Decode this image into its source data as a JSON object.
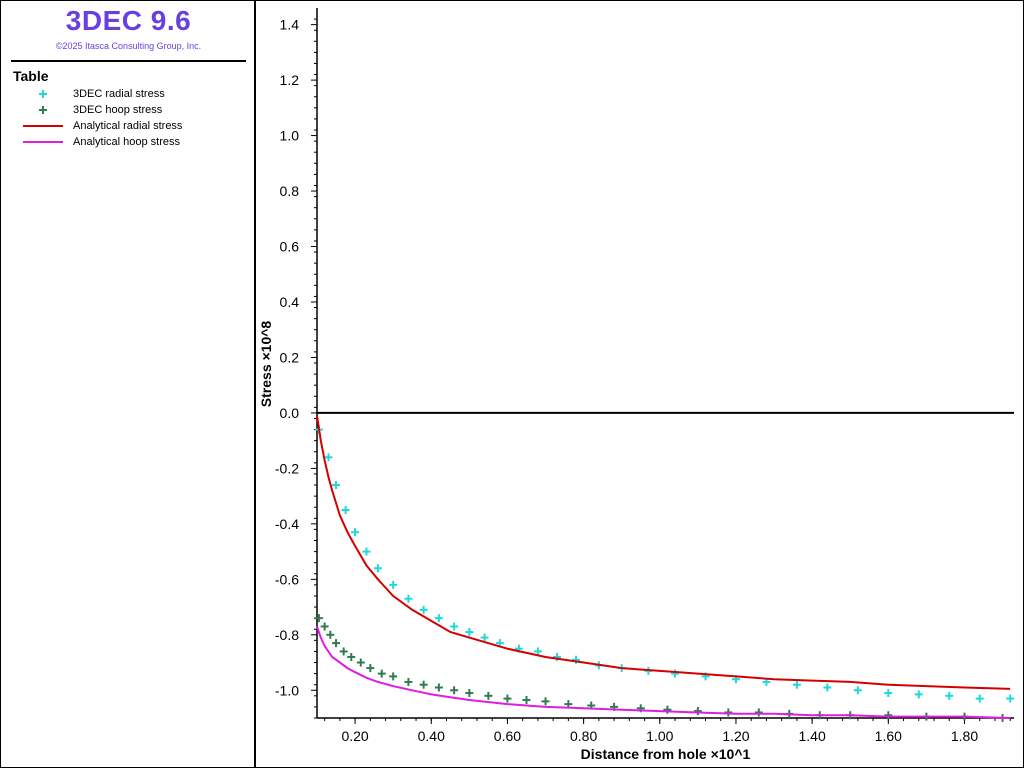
{
  "app": {
    "title": "3DEC 9.6",
    "copyright": "©2025 Itasca Consulting Group, Inc."
  },
  "legend": {
    "heading": "Table",
    "items": [
      {
        "label": "3DEC radial stress",
        "type": "marker",
        "color": "#1fd9d9"
      },
      {
        "label": "3DEC hoop stress",
        "type": "marker",
        "color": "#2e7d4f"
      },
      {
        "label": "Analytical radial stress",
        "type": "line",
        "color": "#d40000"
      },
      {
        "label": "Analytical hoop stress",
        "type": "line",
        "color": "#e01ee0"
      }
    ]
  },
  "chart_data": {
    "type": "scatter",
    "xlabel": "Distance from hole ×10^1",
    "ylabel": "Stress ×10^8",
    "xlim": [
      0.1,
      1.93
    ],
    "ylim": [
      -1.1,
      1.46
    ],
    "x_ticks": [
      "0.20",
      "0.40",
      "0.60",
      "0.80",
      "1.00",
      "1.20",
      "1.40",
      "1.60",
      "1.80"
    ],
    "y_ticks": [
      "1.4",
      "1.2",
      "1.0",
      "0.8",
      "0.6",
      "0.4",
      "0.2",
      "0.0",
      "-0.2",
      "-0.4",
      "-0.6",
      "-0.8",
      "-1.0"
    ],
    "grid": false,
    "legend_position": "left-panel",
    "zero_line": true,
    "series": [
      {
        "name": "3DEC radial stress",
        "kind": "marker",
        "color": "#1fd9d9",
        "x": [
          0.105,
          0.13,
          0.15,
          0.175,
          0.2,
          0.23,
          0.26,
          0.3,
          0.34,
          0.38,
          0.42,
          0.46,
          0.5,
          0.54,
          0.58,
          0.63,
          0.68,
          0.73,
          0.78,
          0.84,
          0.9,
          0.97,
          1.04,
          1.12,
          1.2,
          1.28,
          1.36,
          1.44,
          1.52,
          1.6,
          1.68,
          1.76,
          1.84,
          1.92
        ],
        "y": [
          -0.06,
          -0.16,
          -0.26,
          -0.35,
          -0.43,
          -0.5,
          -0.56,
          -0.62,
          -0.67,
          -0.71,
          -0.74,
          -0.77,
          -0.79,
          -0.81,
          -0.83,
          -0.85,
          -0.86,
          -0.88,
          -0.89,
          -0.91,
          -0.92,
          -0.93,
          -0.94,
          -0.95,
          -0.96,
          -0.97,
          -0.98,
          -0.99,
          -1.0,
          -1.01,
          -1.015,
          -1.02,
          -1.03,
          -1.03
        ]
      },
      {
        "name": "3DEC hoop stress",
        "kind": "marker",
        "color": "#2e7d4f",
        "x": [
          0.105,
          0.12,
          0.135,
          0.15,
          0.17,
          0.19,
          0.215,
          0.24,
          0.27,
          0.3,
          0.34,
          0.38,
          0.42,
          0.46,
          0.5,
          0.55,
          0.6,
          0.65,
          0.7,
          0.76,
          0.82,
          0.88,
          0.95,
          1.02,
          1.1,
          1.18,
          1.26,
          1.34,
          1.42,
          1.5,
          1.6,
          1.7,
          1.8,
          1.9
        ],
        "y": [
          -0.74,
          -0.77,
          -0.8,
          -0.83,
          -0.86,
          -0.88,
          -0.9,
          -0.92,
          -0.94,
          -0.95,
          -0.97,
          -0.98,
          -0.99,
          -1.0,
          -1.01,
          -1.02,
          -1.03,
          -1.035,
          -1.04,
          -1.05,
          -1.055,
          -1.06,
          -1.065,
          -1.07,
          -1.075,
          -1.08,
          -1.08,
          -1.085,
          -1.09,
          -1.09,
          -1.09,
          -1.095,
          -1.095,
          -1.1
        ]
      },
      {
        "name": "Analytical radial stress",
        "kind": "line",
        "color": "#d40000",
        "x": [
          0.1,
          0.11,
          0.12,
          0.13,
          0.14,
          0.16,
          0.18,
          0.2,
          0.23,
          0.26,
          0.3,
          0.35,
          0.4,
          0.45,
          0.5,
          0.6,
          0.7,
          0.8,
          0.9,
          1.0,
          1.1,
          1.2,
          1.3,
          1.4,
          1.5,
          1.6,
          1.7,
          1.8,
          1.92
        ],
        "y": [
          -0.01,
          -0.1,
          -0.17,
          -0.23,
          -0.28,
          -0.37,
          -0.43,
          -0.48,
          -0.55,
          -0.6,
          -0.66,
          -0.71,
          -0.75,
          -0.79,
          -0.81,
          -0.85,
          -0.88,
          -0.9,
          -0.92,
          -0.93,
          -0.94,
          -0.95,
          -0.96,
          -0.965,
          -0.97,
          -0.98,
          -0.985,
          -0.99,
          -0.995
        ]
      },
      {
        "name": "Analytical hoop stress",
        "kind": "line",
        "color": "#e01ee0",
        "x": [
          0.1,
          0.11,
          0.12,
          0.13,
          0.14,
          0.16,
          0.18,
          0.2,
          0.23,
          0.26,
          0.3,
          0.35,
          0.4,
          0.45,
          0.5,
          0.6,
          0.7,
          0.8,
          0.9,
          1.0,
          1.1,
          1.2,
          1.3,
          1.4,
          1.5,
          1.6,
          1.7,
          1.8,
          1.92
        ],
        "y": [
          -0.77,
          -0.81,
          -0.84,
          -0.86,
          -0.88,
          -0.9,
          -0.92,
          -0.935,
          -0.955,
          -0.97,
          -0.985,
          -1.0,
          -1.015,
          -1.025,
          -1.035,
          -1.05,
          -1.06,
          -1.065,
          -1.07,
          -1.075,
          -1.08,
          -1.085,
          -1.085,
          -1.09,
          -1.09,
          -1.095,
          -1.095,
          -1.095,
          -1.1
        ]
      }
    ]
  }
}
